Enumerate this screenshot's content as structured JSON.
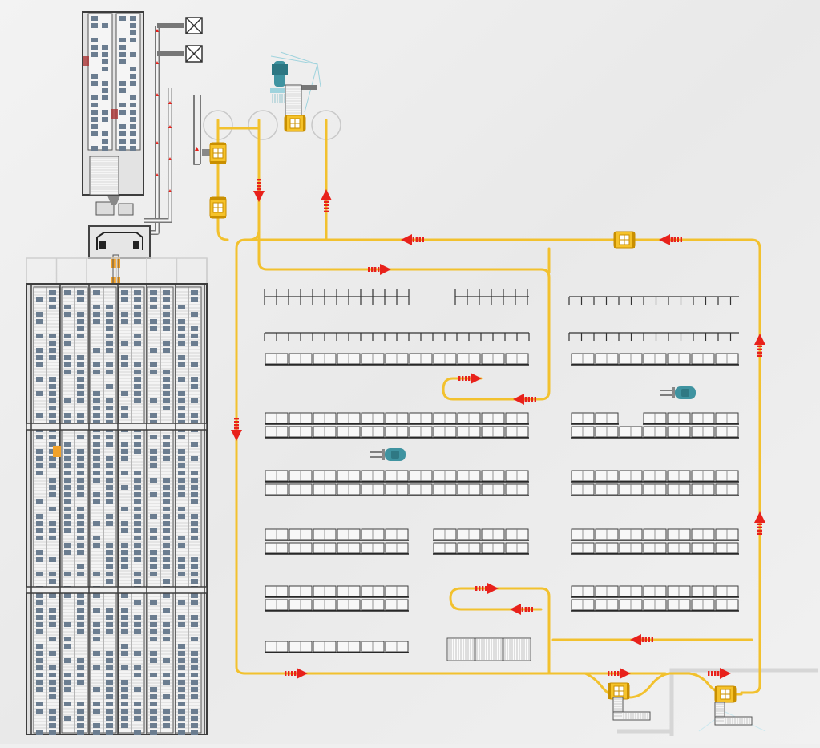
{
  "diagram": {
    "colors": {
      "background": "#efefef",
      "agv_path": "#f2c12e",
      "agv_body": "#f5c22a",
      "agv_detail": "#c98f00",
      "direction_arrow": "#e8211b",
      "rack_frame": "#3d3d3d",
      "rack_tote": "#6b7d90",
      "forklift": "#3f93a0",
      "staging_area": "#d6d6d6"
    },
    "components": {
      "asrs_storage": "asrs-storage",
      "inbound_conveyor": "inbound-conveyor",
      "pick_stations": "pick-stations",
      "agv_loop": "agv-path-loop",
      "selective_racking": "selective-racking",
      "forklifts": "forklift",
      "dock_stations": "dock-stations"
    },
    "icons": {
      "agv": "agv-icon",
      "arrow": "direction-arrow-icon",
      "forklift": "forklift-icon",
      "robot_arm": "robot-arm-icon",
      "crossed_box": "crossed-box-icon"
    }
  }
}
